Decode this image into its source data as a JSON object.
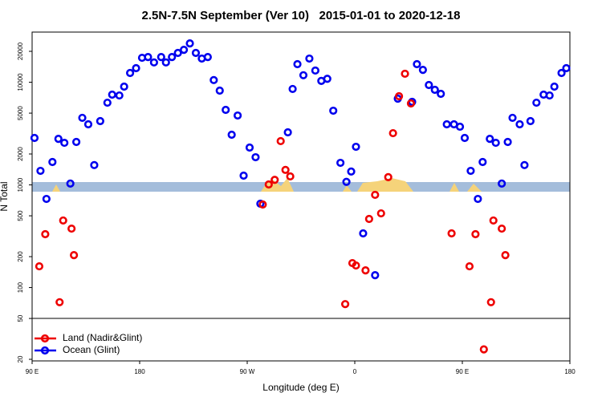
{
  "chart_data": {
    "type": "scatter",
    "title": "2.5N-7.5N September (Ver 10)   2015-01-01 to 2020-12-18",
    "x_label": "Longitude (deg E)",
    "y_label": "N Total",
    "yscale": "log",
    "legend": "bottom-left",
    "xlim": [
      90,
      540
    ],
    "ylim": [
      19.3,
      30800
    ],
    "xticks": [
      {
        "value": 90,
        "label": "90 E"
      },
      180,
      {
        "value": 270,
        "label": "90 W"
      },
      {
        "value": 360,
        "label": "0"
      },
      {
        "value": 450,
        "label": "90 E"
      },
      {
        "value": 540,
        "label": "180"
      }
    ],
    "yticks": [
      20,
      50,
      100,
      200,
      500,
      1000,
      2000,
      5000,
      10000,
      20000
    ],
    "series": [
      {
        "name": "Land (Nadir&Glint)",
        "color": "#ee0000",
        "x": [
          96,
          101,
          113,
          116,
          123,
          125,
          283,
          288,
          293,
          298,
          302,
          306,
          352,
          358,
          361,
          369,
          372,
          377,
          382,
          388,
          392,
          397,
          402,
          407,
          441,
          456,
          461,
          474,
          476,
          483,
          486,
          468
        ],
        "values": [
          161,
          331,
          72,
          450,
          375,
          207,
          644,
          1010,
          1120,
          2670,
          1400,
          1210,
          69,
          173,
          164,
          147,
          466,
          800,
          528,
          1190,
          3190,
          7300,
          12100,
          6210,
          337,
          161,
          331,
          72,
          450,
          375,
          207,
          25
        ]
      },
      {
        "name": "Ocean (Glint)",
        "color": "#0000ee",
        "x": [
          92,
          97,
          102,
          107,
          112,
          117,
          122,
          127,
          132,
          137,
          142,
          147,
          153,
          157,
          163,
          167,
          172,
          177,
          182,
          187,
          192,
          198,
          202,
          207,
          212,
          217,
          222,
          227,
          232,
          237,
          242,
          247,
          252,
          257,
          262,
          267,
          272,
          277,
          281,
          304,
          308,
          312,
          317,
          322,
          327,
          332,
          337,
          342,
          348,
          353,
          357,
          361,
          367,
          377,
          396,
          408,
          412,
          417,
          422,
          427,
          432,
          437,
          443,
          448,
          452,
          457,
          463,
          467,
          473,
          478,
          483,
          488,
          492,
          498,
          502,
          507,
          512,
          518,
          523,
          527,
          533,
          537
        ],
        "values": [
          2865,
          1370,
          730,
          1670,
          2810,
          2570,
          1030,
          2620,
          4500,
          3890,
          1560,
          4180,
          6320,
          7570,
          7430,
          9060,
          12300,
          13700,
          17300,
          17600,
          15600,
          17600,
          15600,
          17600,
          19300,
          20700,
          23900,
          19300,
          17000,
          17600,
          10500,
          8280,
          5380,
          3080,
          4740,
          1230,
          2310,
          1860,
          656,
          3250,
          8600,
          15000,
          11700,
          17000,
          13000,
          10300,
          10800,
          5280,
          1640,
          1070,
          1350,
          2350,
          337,
          132,
          6920,
          6440,
          15000,
          13200,
          9400,
          8430,
          7710,
          3890,
          3890,
          3690,
          2865,
          1370,
          730,
          1670,
          2810,
          2570,
          1030,
          2620,
          4500,
          3890,
          1560,
          4180,
          6320,
          7570,
          7430,
          9060,
          12300,
          13700
        ]
      }
    ]
  }
}
